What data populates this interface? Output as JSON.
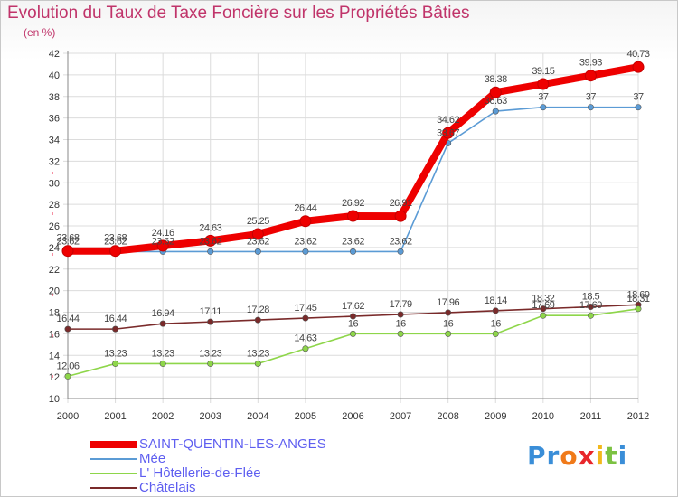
{
  "title": "Evolution du Taux de Taxe Foncière sur les Propriétés Bâties",
  "subtitle": "(en %)",
  "logo": "Proxiti",
  "chart_data": {
    "type": "line",
    "categories": [
      "2000",
      "2001",
      "2002",
      "2003",
      "2004",
      "2005",
      "2006",
      "2007",
      "2008",
      "2009",
      "2010",
      "2011",
      "2012"
    ],
    "ylim": [
      10,
      42
    ],
    "yticks": [
      10,
      12,
      14,
      16,
      18,
      20,
      22,
      24,
      26,
      28,
      30,
      32,
      34,
      36,
      38,
      40,
      42
    ],
    "grid": true,
    "legend_position": "bottom-left",
    "series": [
      {
        "name": "SAINT-QUENTIN-LES-ANGES",
        "color": "#ee0000",
        "values": [
          23.68,
          23.68,
          24.16,
          24.63,
          25.25,
          26.44,
          26.92,
          26.91,
          34.62,
          38.38,
          39.15,
          39.93,
          40.73
        ],
        "labels": [
          "23.68",
          "23.68",
          "24.16",
          "24.63",
          "25.25",
          "26.44",
          "26.92",
          "26.91",
          "34.62",
          "38.38",
          "39.15",
          "39.93",
          "40.73"
        ]
      },
      {
        "name": "Mée",
        "color": "#5b9bd5",
        "values": [
          23.62,
          23.62,
          23.62,
          23.62,
          23.62,
          23.62,
          23.62,
          23.62,
          33.67,
          36.63,
          37,
          37,
          37
        ],
        "labels": [
          "23.62",
          "23.62",
          "23.62",
          "23.62",
          "23.62",
          "23.62",
          "23.62",
          "23.62",
          "33.67",
          "36.63",
          "37",
          "37",
          "37"
        ]
      },
      {
        "name": "L' Hôtellerie-de-Flée",
        "color": "#8ed64a",
        "values": [
          12.06,
          13.23,
          13.23,
          13.23,
          13.23,
          14.63,
          16,
          16,
          16,
          16,
          17.69,
          17.69,
          18.31
        ],
        "labels": [
          "12.06",
          "13.23",
          "13.23",
          "13.23",
          "13.23",
          "14.63",
          "16",
          "16",
          "16",
          "16",
          "17.69",
          "17.69",
          "18.31"
        ]
      },
      {
        "name": "Châtelais",
        "color": "#7a2a2a",
        "values": [
          16.44,
          16.44,
          16.94,
          17.11,
          17.28,
          17.45,
          17.62,
          17.79,
          17.96,
          18.14,
          18.32,
          18.5,
          18.69
        ],
        "labels": [
          "16.44",
          "16.44",
          "16.94",
          "17.11",
          "17.28",
          "17.45",
          "17.62",
          "17.79",
          "17.96",
          "18.14",
          "18.32",
          "18.5",
          "18.69"
        ]
      }
    ]
  }
}
